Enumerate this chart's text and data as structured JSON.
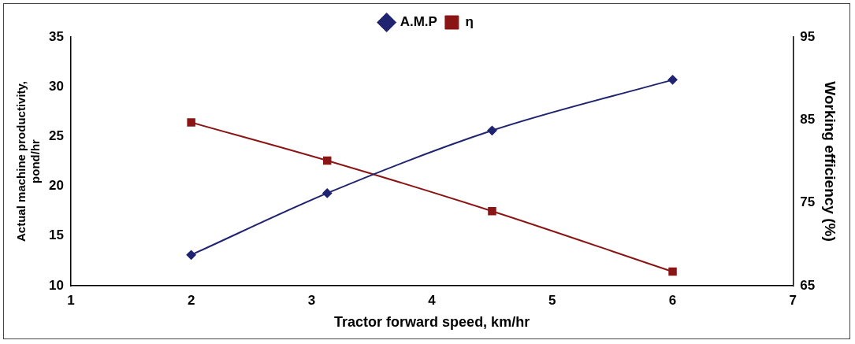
{
  "chart_data": {
    "type": "line",
    "xlabel": "Tractor forward speed, km/hr",
    "ylabel": "Actual machine productivity, pond/hr",
    "y2label": "Working efficiency (%)",
    "xlim": [
      1,
      7
    ],
    "xticks": [
      1,
      2,
      3,
      4,
      5,
      6,
      7
    ],
    "ylim": [
      10,
      35
    ],
    "yticks": [
      10,
      15,
      20,
      25,
      30,
      35
    ],
    "y2lim": [
      65,
      95
    ],
    "y2ticks": [
      65,
      75,
      85,
      95
    ],
    "grid": false,
    "legend": "top",
    "series": [
      {
        "name": "A.M.P",
        "color": "#1f2370",
        "marker": "diamond",
        "x": [
          2,
          3.13,
          4.5,
          6
        ],
        "values": [
          13.1,
          19.3,
          25.6,
          30.7
        ]
      },
      {
        "name": "η",
        "color": "#8b1414",
        "marker": "square",
        "axis": "y2",
        "x": [
          2,
          3.13,
          4.5,
          6
        ],
        "values": [
          84.7,
          80.1,
          74.0,
          66.7
        ]
      }
    ]
  }
}
